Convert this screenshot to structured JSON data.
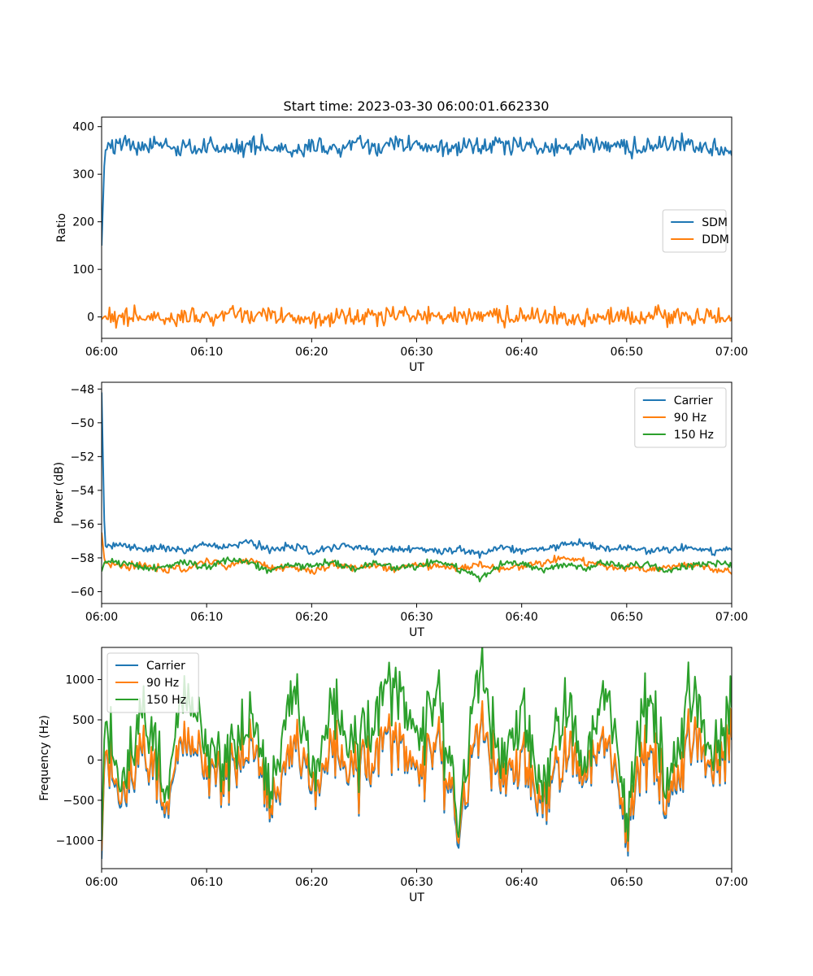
{
  "figure": {
    "title": "Start time: 2023-03-30 06:00:01.662330",
    "colors": {
      "blue": "#1f77b4",
      "orange": "#ff7f0e",
      "green": "#2ca02c",
      "axis": "#000000",
      "legend_border": "#cccccc"
    }
  },
  "chart_data": [
    {
      "type": "line",
      "xlabel": "UT",
      "ylabel": "Ratio",
      "xlim": [
        "06:00",
        "07:00"
      ],
      "xticks": [
        "06:00",
        "06:10",
        "06:20",
        "06:30",
        "06:40",
        "06:50",
        "07:00"
      ],
      "ylim": [
        -45,
        420
      ],
      "yticks": [
        0,
        100,
        200,
        300,
        400
      ],
      "yticklabels": [
        "0",
        "100",
        "200",
        "300",
        "400"
      ],
      "grid": false,
      "legend_position": "center-right",
      "x_minutes": [
        0,
        0.3,
        2,
        4,
        6,
        8,
        10,
        12,
        14,
        16,
        18,
        20,
        22,
        24,
        26,
        28,
        30,
        32,
        34,
        36,
        38,
        40,
        42,
        44,
        46,
        48,
        50,
        52,
        54,
        56,
        58,
        60
      ],
      "series": [
        {
          "name": "SDM",
          "color": "blue",
          "values": [
            150,
            350,
            365,
            360,
            358,
            352,
            362,
            350,
            360,
            356,
            355,
            358,
            352,
            362,
            355,
            360,
            362,
            358,
            360,
            356,
            362,
            358,
            352,
            355,
            360,
            362,
            355,
            358,
            360,
            365,
            358,
            345
          ]
        },
        {
          "name": "DDM",
          "color": "orange",
          "values": [
            -5,
            2,
            -3,
            0,
            3,
            -2,
            0,
            2,
            4,
            -1,
            0,
            -3,
            1,
            -2,
            0,
            3,
            0,
            2,
            -4,
            5,
            0,
            2,
            -3,
            0,
            -2,
            0,
            1,
            -2,
            4,
            0,
            -3,
            2
          ]
        }
      ]
    },
    {
      "type": "line",
      "xlabel": "UT",
      "ylabel": "Power (dB)",
      "xlim": [
        "06:00",
        "07:00"
      ],
      "xticks": [
        "06:00",
        "06:10",
        "06:20",
        "06:30",
        "06:40",
        "06:50",
        "07:00"
      ],
      "ylim": [
        -60.7,
        -47.6
      ],
      "yticks": [
        -60,
        -58,
        -56,
        -54,
        -52,
        -50,
        -48
      ],
      "yticklabels": [
        "−60",
        "−58",
        "−56",
        "−54",
        "−52",
        "−50",
        "−48"
      ],
      "grid": false,
      "legend_position": "top-right",
      "x_minutes": [
        0,
        0.3,
        2,
        4,
        6,
        8,
        10,
        12,
        14,
        16,
        18,
        20,
        22,
        24,
        26,
        28,
        30,
        32,
        34,
        36,
        38,
        40,
        42,
        44,
        46,
        48,
        50,
        52,
        54,
        56,
        58,
        60
      ],
      "series": [
        {
          "name": "Carrier",
          "color": "blue",
          "values": [
            -48.2,
            -57.3,
            -57.2,
            -57.5,
            -57.4,
            -57.6,
            -57.2,
            -57.4,
            -57.0,
            -57.5,
            -57.3,
            -57.6,
            -57.4,
            -57.3,
            -57.6,
            -57.5,
            -57.4,
            -57.6,
            -57.5,
            -57.8,
            -57.4,
            -57.6,
            -57.5,
            -57.2,
            -57.1,
            -57.5,
            -57.4,
            -57.6,
            -57.5,
            -57.4,
            -57.6,
            -57.5
          ]
        },
        {
          "name": "90 Hz",
          "color": "orange",
          "values": [
            -56.5,
            -58.3,
            -58.5,
            -58.4,
            -58.7,
            -58.6,
            -58.2,
            -58.5,
            -58.1,
            -58.6,
            -58.5,
            -58.8,
            -58.4,
            -58.6,
            -58.5,
            -58.7,
            -58.4,
            -58.5,
            -58.6,
            -58.4,
            -58.7,
            -58.5,
            -58.3,
            -58.0,
            -58.2,
            -58.5,
            -58.6,
            -58.7,
            -58.5,
            -58.4,
            -58.6,
            -58.9
          ]
        },
        {
          "name": "150 Hz",
          "color": "green",
          "values": [
            -58.8,
            -58.2,
            -58.3,
            -58.6,
            -58.5,
            -58.2,
            -58.6,
            -58.1,
            -58.3,
            -58.8,
            -58.4,
            -58.5,
            -58.2,
            -58.7,
            -58.3,
            -58.6,
            -58.5,
            -58.2,
            -58.6,
            -59.2,
            -58.4,
            -58.3,
            -58.7,
            -58.4,
            -58.6,
            -58.3,
            -58.5,
            -58.4,
            -58.7,
            -58.5,
            -58.3,
            -58.5
          ]
        }
      ]
    },
    {
      "type": "line",
      "xlabel": "UT",
      "ylabel": "Frequency (Hz)",
      "xlim": [
        "06:00",
        "07:00"
      ],
      "xticks": [
        "06:00",
        "06:10",
        "06:20",
        "06:30",
        "06:40",
        "06:50",
        "07:00"
      ],
      "ylim": [
        -1350,
        1400
      ],
      "yticks": [
        -1000,
        -500,
        0,
        500,
        1000
      ],
      "yticklabels": [
        "−1000",
        "−500",
        "0",
        "500",
        "1000"
      ],
      "grid": false,
      "legend_position": "top-left",
      "x_minutes": [
        0,
        0.3,
        2,
        4,
        6,
        8,
        10,
        12,
        14,
        16,
        18,
        20,
        22,
        24,
        26,
        28,
        30,
        32,
        34,
        36,
        38,
        40,
        42,
        44,
        46,
        48,
        50,
        52,
        54,
        56,
        58,
        60
      ],
      "series": [
        {
          "name": "Carrier",
          "color": "blue",
          "values": [
            -1230,
            100,
            -400,
            200,
            -600,
            300,
            -100,
            -300,
            250,
            -500,
            100,
            -400,
            150,
            -200,
            0,
            300,
            -150,
            200,
            -950,
            350,
            -300,
            100,
            -700,
            150,
            -200,
            250,
            -800,
            100,
            -600,
            300,
            -100,
            200
          ]
        },
        {
          "name": "90 Hz",
          "color": "orange",
          "values": [
            -1130,
            120,
            -350,
            230,
            -550,
            330,
            -70,
            -270,
            280,
            -460,
            130,
            -360,
            180,
            -170,
            30,
            330,
            -120,
            230,
            -890,
            380,
            -270,
            130,
            -650,
            180,
            -170,
            280,
            -740,
            130,
            -550,
            330,
            -70,
            230
          ]
        },
        {
          "name": "150 Hz",
          "color": "green",
          "values": [
            -1000,
            500,
            -200,
            700,
            -400,
            900,
            200,
            -100,
            600,
            -300,
            800,
            -200,
            700,
            100,
            500,
            1000,
            300,
            800,
            -800,
            1100,
            -100,
            700,
            -500,
            800,
            -100,
            900,
            -600,
            800,
            -400,
            900,
            100,
            600
          ]
        }
      ]
    }
  ]
}
